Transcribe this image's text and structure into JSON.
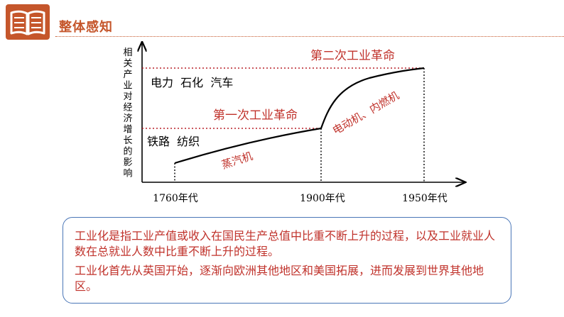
{
  "header": {
    "section_title": "整体感知",
    "icon": "open-book-icon",
    "accent_color": "#c5562b"
  },
  "chart_data": {
    "type": "line",
    "ylabel": "相关产业对经济增长的影响",
    "x_ticks": [
      "1760年代",
      "1900年代",
      "1950年代"
    ],
    "revolutions": [
      {
        "name": "第一次工业革命",
        "industries": "铁路  纺织",
        "technology": "蒸汽机",
        "period": [
          "1760年代",
          "1900年代"
        ]
      },
      {
        "name": "第二次工业革命",
        "industries": "电力  石化  汽车",
        "technology": "电动机、内燃机",
        "period": [
          "1900年代",
          "1950年代"
        ]
      }
    ],
    "series_color": "#000000",
    "reference_line_color": "#b8202a"
  },
  "note": {
    "paragraphs": [
      "        工业化是指工业产值或收入在国民生产总值中比重不断上升的过程，以及工业就业人数在总就业人数中比重不断上升的过程。",
      "        工业化首先从英国开始，逐渐向欧洲其他地区和美国拓展，进而发展到世界其他地区。"
    ],
    "border_color": "#4a76b7",
    "text_color": "#c0322b"
  }
}
